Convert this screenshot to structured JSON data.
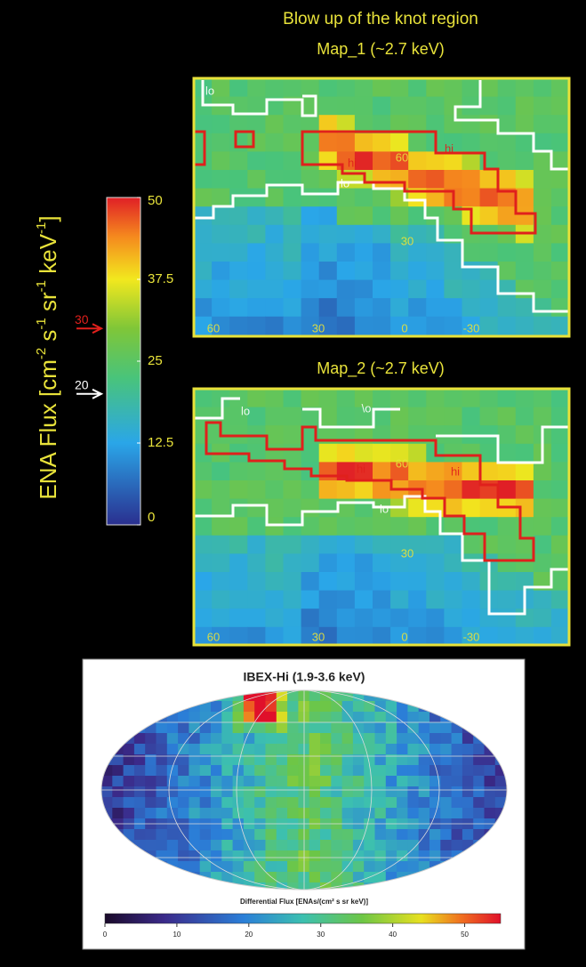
{
  "header": {
    "title": "Blow up of the knot region"
  },
  "colorbar": {
    "label_parts": [
      "ENA Flux [cm",
      "-2",
      " s",
      "-1",
      " sr",
      "-1",
      " keV",
      "-1",
      "]"
    ],
    "range": [
      0,
      50
    ],
    "ticks": [
      50,
      37.5,
      25,
      12.5,
      0
    ],
    "markers": [
      {
        "value": 30,
        "color": "#e0201c"
      },
      {
        "value": 20,
        "color": "#ffffff"
      }
    ]
  },
  "maps": [
    {
      "title": "Map_1 (~2.7 keV)",
      "labels": [
        "lo",
        "hi",
        "lo",
        "60",
        "hi",
        "30",
        "60",
        "30",
        "0",
        "-30"
      ]
    },
    {
      "title": "Map_2 (~2.7 keV)",
      "labels": [
        "lo",
        "\\o",
        "hi",
        "60",
        "hi",
        "lo",
        "30",
        "60",
        "30",
        "0",
        "-30"
      ]
    }
  ],
  "sky_map": {
    "title": "IBEX-Hi (1.9-3.6 keV)",
    "colorbar_label": "Differential Flux [ENAs/(cm² s sr keV)]",
    "range": [
      0,
      55
    ],
    "ticks": [
      0,
      10,
      20,
      30,
      40,
      50
    ]
  }
}
